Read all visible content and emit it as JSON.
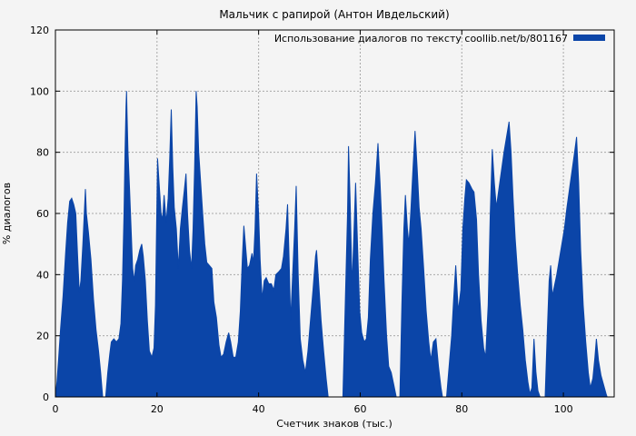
{
  "title": "Мальчик с рапирой (Антон Ивдельский)",
  "legend": {
    "label": "Использование диалогов по тексту coollib.net/b/801167"
  },
  "colors": {
    "series_fill": "#0b45a8",
    "background": "#f4f4f4",
    "grid": "#a8a8a8",
    "axis": "#000000",
    "text": "#000000"
  },
  "chart_data": {
    "type": "area",
    "title": "Мальчик с рапирой (Антон Ивдельский)",
    "xlabel": "Счетчик знаков (тыс.)",
    "ylabel": "% диалогов",
    "xlim": [
      0,
      110
    ],
    "ylim": [
      0,
      120
    ],
    "xticks": [
      0,
      20,
      40,
      60,
      80,
      100
    ],
    "yticks": [
      0,
      20,
      40,
      60,
      80,
      100,
      120
    ],
    "grid": true,
    "legend_position": "top-right",
    "series": [
      {
        "name": "Использование диалогов по тексту coollib.net/b/801167",
        "color": "#0b45a8",
        "points": [
          [
            0,
            0
          ],
          [
            0.3,
            5
          ],
          [
            0.6,
            12
          ],
          [
            1,
            22
          ],
          [
            1.5,
            33
          ],
          [
            2,
            47
          ],
          [
            2.4,
            57
          ],
          [
            2.8,
            64
          ],
          [
            3.2,
            65
          ],
          [
            3.6,
            63
          ],
          [
            4,
            60
          ],
          [
            4.4,
            45
          ],
          [
            4.7,
            34
          ],
          [
            5,
            38
          ],
          [
            5.4,
            50
          ],
          [
            5.9,
            68
          ],
          [
            6.1,
            60
          ],
          [
            6.5,
            54
          ],
          [
            7,
            45
          ],
          [
            7.5,
            32
          ],
          [
            8,
            22
          ],
          [
            8.5,
            15
          ],
          [
            8.9,
            8
          ],
          [
            9.3,
            0
          ],
          [
            9.9,
            0
          ],
          [
            10.3,
            8
          ],
          [
            10.7,
            14
          ],
          [
            11,
            18
          ],
          [
            11.5,
            19
          ],
          [
            12,
            18
          ],
          [
            12.5,
            19
          ],
          [
            12.9,
            24
          ],
          [
            13.2,
            38
          ],
          [
            13.5,
            60
          ],
          [
            13.7,
            80
          ],
          [
            13.9,
            95
          ],
          [
            14,
            100
          ],
          [
            14.1,
            93
          ],
          [
            14.3,
            80
          ],
          [
            14.6,
            68
          ],
          [
            14.9,
            55
          ],
          [
            15.2,
            42
          ],
          [
            15.5,
            38
          ],
          [
            15.8,
            43
          ],
          [
            16.2,
            45
          ],
          [
            16.6,
            48
          ],
          [
            17,
            50
          ],
          [
            17.3,
            46
          ],
          [
            17.7,
            38
          ],
          [
            18.1,
            25
          ],
          [
            18.5,
            15
          ],
          [
            19,
            13
          ],
          [
            19.4,
            16
          ],
          [
            19.7,
            30
          ],
          [
            19.9,
            55
          ],
          [
            20.1,
            78
          ],
          [
            20.4,
            70
          ],
          [
            20.8,
            60
          ],
          [
            21.1,
            58
          ],
          [
            21.4,
            66
          ],
          [
            21.8,
            57
          ],
          [
            22.2,
            65
          ],
          [
            22.5,
            78
          ],
          [
            22.8,
            94
          ],
          [
            23.1,
            75
          ],
          [
            23.4,
            62
          ],
          [
            23.8,
            55
          ],
          [
            24.2,
            42
          ],
          [
            24.6,
            55
          ],
          [
            25,
            62
          ],
          [
            25.4,
            68
          ],
          [
            25.7,
            73
          ],
          [
            26,
            60
          ],
          [
            26.4,
            48
          ],
          [
            26.8,
            42
          ],
          [
            27.1,
            55
          ],
          [
            27.4,
            75
          ],
          [
            27.7,
            100
          ],
          [
            27.9,
            95
          ],
          [
            28.2,
            80
          ],
          [
            28.6,
            70
          ],
          [
            29,
            60
          ],
          [
            29.4,
            50
          ],
          [
            29.8,
            44
          ],
          [
            30.3,
            43
          ],
          [
            30.8,
            42
          ],
          [
            31.2,
            31
          ],
          [
            31.7,
            26
          ],
          [
            32.2,
            17
          ],
          [
            32.6,
            13
          ],
          [
            33.1,
            14
          ],
          [
            33.6,
            18
          ],
          [
            34.1,
            21
          ],
          [
            34.5,
            18
          ],
          [
            35,
            13
          ],
          [
            35.5,
            13
          ],
          [
            36,
            18
          ],
          [
            36.4,
            28
          ],
          [
            36.8,
            45
          ],
          [
            37.1,
            56
          ],
          [
            37.4,
            50
          ],
          [
            37.8,
            42
          ],
          [
            38.2,
            43
          ],
          [
            38.7,
            47
          ],
          [
            39,
            44
          ],
          [
            39.3,
            55
          ],
          [
            39.6,
            73
          ],
          [
            40,
            60
          ],
          [
            40.3,
            45
          ],
          [
            40.7,
            32
          ],
          [
            41.1,
            38
          ],
          [
            41.5,
            39
          ],
          [
            42,
            37
          ],
          [
            42.5,
            37
          ],
          [
            43,
            35
          ],
          [
            43.4,
            40
          ],
          [
            44,
            41
          ],
          [
            44.5,
            42
          ],
          [
            44.9,
            46
          ],
          [
            45.4,
            55
          ],
          [
            45.7,
            63
          ],
          [
            46,
            45
          ],
          [
            46.3,
            25
          ],
          [
            46.7,
            40
          ],
          [
            47.1,
            55
          ],
          [
            47.4,
            69
          ],
          [
            47.8,
            40
          ],
          [
            48.2,
            19
          ],
          [
            48.7,
            12
          ],
          [
            49.2,
            8
          ],
          [
            49.7,
            15
          ],
          [
            50.2,
            25
          ],
          [
            50.7,
            35
          ],
          [
            51.2,
            46
          ],
          [
            51.4,
            48
          ],
          [
            51.8,
            38
          ],
          [
            52.3,
            25
          ],
          [
            52.8,
            15
          ],
          [
            53.3,
            6
          ],
          [
            53.7,
            0
          ],
          [
            56.6,
            0
          ],
          [
            56.9,
            20
          ],
          [
            57.2,
            40
          ],
          [
            57.5,
            60
          ],
          [
            57.7,
            82
          ],
          [
            58,
            65
          ],
          [
            58.4,
            36
          ],
          [
            58.8,
            55
          ],
          [
            59.1,
            70
          ],
          [
            59.5,
            48
          ],
          [
            59.9,
            28
          ],
          [
            60.3,
            21
          ],
          [
            60.8,
            18
          ],
          [
            61.2,
            19
          ],
          [
            61.6,
            26
          ],
          [
            62,
            45
          ],
          [
            62.5,
            60
          ],
          [
            63,
            70
          ],
          [
            63.5,
            83
          ],
          [
            63.9,
            70
          ],
          [
            64.3,
            55
          ],
          [
            64.7,
            38
          ],
          [
            65.2,
            20
          ],
          [
            65.6,
            10
          ],
          [
            66.1,
            8
          ],
          [
            66.6,
            4
          ],
          [
            67.1,
            0
          ],
          [
            67.8,
            0
          ],
          [
            68.2,
            30
          ],
          [
            68.6,
            55
          ],
          [
            68.9,
            66
          ],
          [
            69.3,
            55
          ],
          [
            69.6,
            50
          ],
          [
            70,
            62
          ],
          [
            70.4,
            75
          ],
          [
            70.8,
            87
          ],
          [
            71.2,
            75
          ],
          [
            71.6,
            62
          ],
          [
            72,
            55
          ],
          [
            72.5,
            42
          ],
          [
            73,
            28
          ],
          [
            73.5,
            18
          ],
          [
            73.9,
            12
          ],
          [
            74.4,
            18
          ],
          [
            74.9,
            19
          ],
          [
            75.4,
            10
          ],
          [
            75.9,
            3
          ],
          [
            76.2,
            0
          ],
          [
            77,
            0
          ],
          [
            77.5,
            10
          ],
          [
            78,
            20
          ],
          [
            78.4,
            32
          ],
          [
            78.8,
            43
          ],
          [
            79.3,
            28
          ],
          [
            79.8,
            35
          ],
          [
            80.2,
            55
          ],
          [
            80.6,
            65
          ],
          [
            80.9,
            71
          ],
          [
            81.4,
            70
          ],
          [
            82,
            68
          ],
          [
            82.4,
            67
          ],
          [
            82.9,
            58
          ],
          [
            83.3,
            40
          ],
          [
            83.8,
            25
          ],
          [
            84.3,
            16
          ],
          [
            84.7,
            13
          ],
          [
            85.2,
            30
          ],
          [
            85.6,
            60
          ],
          [
            86,
            81
          ],
          [
            86.4,
            70
          ],
          [
            86.8,
            62
          ],
          [
            87.3,
            68
          ],
          [
            87.8,
            74
          ],
          [
            88.3,
            80
          ],
          [
            88.8,
            85
          ],
          [
            89.3,
            90
          ],
          [
            89.7,
            80
          ],
          [
            90.1,
            65
          ],
          [
            90.5,
            52
          ],
          [
            91,
            40
          ],
          [
            91.5,
            30
          ],
          [
            92,
            22
          ],
          [
            92.5,
            12
          ],
          [
            93,
            5
          ],
          [
            93.4,
            1
          ],
          [
            93.8,
            3
          ],
          [
            94.2,
            19
          ],
          [
            94.6,
            8
          ],
          [
            95,
            2
          ],
          [
            95.4,
            0
          ],
          [
            96.4,
            0
          ],
          [
            96.8,
            20
          ],
          [
            97.2,
            38
          ],
          [
            97.5,
            43
          ],
          [
            97.8,
            33
          ],
          [
            98.2,
            36
          ],
          [
            98.7,
            40
          ],
          [
            99.2,
            45
          ],
          [
            99.7,
            50
          ],
          [
            100.2,
            55
          ],
          [
            100.7,
            62
          ],
          [
            101.2,
            68
          ],
          [
            101.7,
            74
          ],
          [
            102.2,
            80
          ],
          [
            102.6,
            85
          ],
          [
            103,
            70
          ],
          [
            103.4,
            48
          ],
          [
            103.9,
            30
          ],
          [
            104.4,
            18
          ],
          [
            104.9,
            8
          ],
          [
            105.3,
            3
          ],
          [
            105.8,
            6
          ],
          [
            106.2,
            13
          ],
          [
            106.5,
            19
          ],
          [
            106.9,
            12
          ],
          [
            107.4,
            7
          ],
          [
            107.9,
            4
          ],
          [
            108.4,
            1
          ],
          [
            108.6,
            0
          ]
        ]
      }
    ]
  }
}
